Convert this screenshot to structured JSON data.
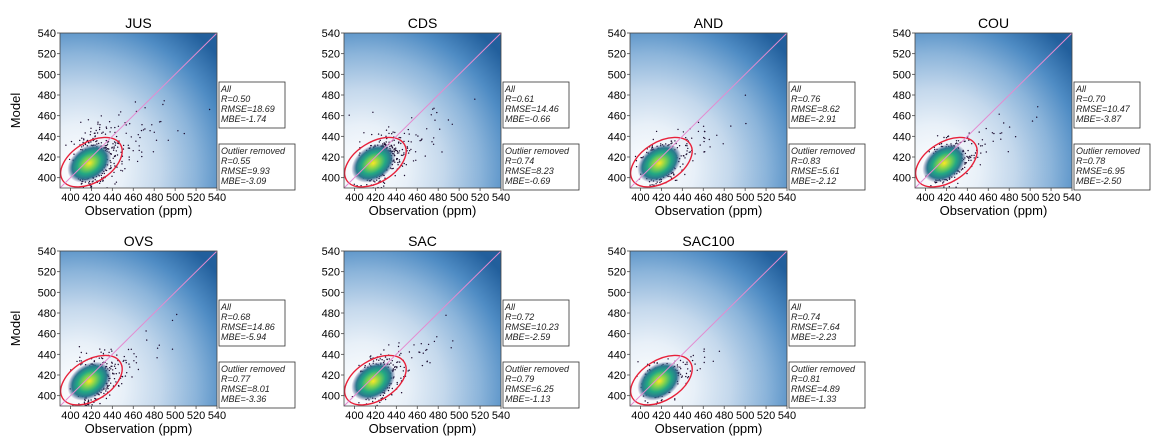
{
  "figure": {
    "x_axis_label": "Observation (ppm)",
    "y_axis_label": "Model"
  },
  "chart_data": [
    {
      "type": "scatter",
      "title": "JUS",
      "xlabel": "Observation (ppm)",
      "ylabel": "Model",
      "xlim": [
        390,
        540
      ],
      "ylim": [
        390,
        540
      ],
      "xticks": [
        "400",
        "420",
        "440",
        "460",
        "480",
        "500",
        "520",
        "540"
      ],
      "yticks": [
        "400",
        "420",
        "440",
        "460",
        "480",
        "500",
        "520",
        "540"
      ],
      "stats": {
        "all": {
          "label": "All",
          "lines": [
            "R=0.50",
            "RMSE=18.69",
            "MBE=-1.74"
          ]
        },
        "outlier_removed": {
          "label": "Outlier removed",
          "lines": [
            "R=0.55",
            "RMSE=9.93",
            "MBE=-3.09"
          ]
        }
      }
    },
    {
      "type": "scatter",
      "title": "CDS",
      "xlabel": "Observation (ppm)",
      "ylabel": "",
      "xlim": [
        390,
        540
      ],
      "ylim": [
        390,
        540
      ],
      "xticks": [
        "400",
        "420",
        "440",
        "460",
        "480",
        "500",
        "520",
        "540"
      ],
      "yticks": [
        "400",
        "420",
        "440",
        "460",
        "480",
        "500",
        "520",
        "540"
      ],
      "stats": {
        "all": {
          "label": "All",
          "lines": [
            "R=0.61",
            "RMSE=14.46",
            "MBE=-0.66"
          ]
        },
        "outlier_removed": {
          "label": "Outlier removed",
          "lines": [
            "R=0.74",
            "RMSE=8.23",
            "MBE=-0.69"
          ]
        }
      }
    },
    {
      "type": "scatter",
      "title": "AND",
      "xlabel": "Observation (ppm)",
      "ylabel": "",
      "xlim": [
        390,
        540
      ],
      "ylim": [
        390,
        540
      ],
      "xticks": [
        "400",
        "420",
        "440",
        "460",
        "480",
        "500",
        "520",
        "540"
      ],
      "yticks": [
        "400",
        "420",
        "440",
        "460",
        "480",
        "500",
        "520",
        "540"
      ],
      "stats": {
        "all": {
          "label": "All",
          "lines": [
            "R=0.76",
            "RMSE=8.62",
            "MBE=-2.91"
          ]
        },
        "outlier_removed": {
          "label": "Outlier removed",
          "lines": [
            "R=0.83",
            "RMSE=5.61",
            "MBE=-2.12"
          ]
        }
      }
    },
    {
      "type": "scatter",
      "title": "COU",
      "xlabel": "Observation (ppm)",
      "ylabel": "",
      "xlim": [
        390,
        540
      ],
      "ylim": [
        390,
        540
      ],
      "xticks": [
        "400",
        "420",
        "440",
        "460",
        "480",
        "500",
        "520",
        "540"
      ],
      "yticks": [
        "400",
        "420",
        "440",
        "460",
        "480",
        "500",
        "520",
        "540"
      ],
      "stats": {
        "all": {
          "label": "All",
          "lines": [
            "R=0.70",
            "RMSE=10.47",
            "MBE=-3.87"
          ]
        },
        "outlier_removed": {
          "label": "Outlier removed",
          "lines": [
            "R=0.78",
            "RMSE=6.95",
            "MBE=-2.50"
          ]
        }
      }
    },
    {
      "type": "scatter",
      "title": "OVS",
      "xlabel": "Observation (ppm)",
      "ylabel": "Model",
      "xlim": [
        390,
        540
      ],
      "ylim": [
        390,
        540
      ],
      "xticks": [
        "400",
        "420",
        "440",
        "460",
        "480",
        "500",
        "520",
        "540"
      ],
      "yticks": [
        "400",
        "420",
        "440",
        "460",
        "480",
        "500",
        "520",
        "540"
      ],
      "stats": {
        "all": {
          "label": "All",
          "lines": [
            "R=0.68",
            "RMSE=14.86",
            "MBE=-5.94"
          ]
        },
        "outlier_removed": {
          "label": "Outlier removed",
          "lines": [
            "R=0.77",
            "RMSE=8.01",
            "MBE=-3.36"
          ]
        }
      }
    },
    {
      "type": "scatter",
      "title": "SAC",
      "xlabel": "Observation (ppm)",
      "ylabel": "",
      "xlim": [
        390,
        540
      ],
      "ylim": [
        390,
        540
      ],
      "xticks": [
        "400",
        "420",
        "440",
        "460",
        "480",
        "500",
        "520",
        "540"
      ],
      "yticks": [
        "400",
        "420",
        "440",
        "460",
        "480",
        "500",
        "520",
        "540"
      ],
      "stats": {
        "all": {
          "label": "All",
          "lines": [
            "R=0.72",
            "RMSE=10.23",
            "MBE=-2.59"
          ]
        },
        "outlier_removed": {
          "label": "Outlier removed",
          "lines": [
            "R=0.79",
            "RMSE=6.25",
            "MBE=-1.13"
          ]
        }
      }
    },
    {
      "type": "scatter",
      "title": "SAC100",
      "xlabel": "Observation (ppm)",
      "ylabel": "",
      "xlim": [
        390,
        540
      ],
      "ylim": [
        390,
        540
      ],
      "xticks": [
        "400",
        "420",
        "440",
        "460",
        "480",
        "500",
        "520",
        "540"
      ],
      "yticks": [
        "400",
        "420",
        "440",
        "460",
        "480",
        "500",
        "520",
        "540"
      ],
      "stats": {
        "all": {
          "label": "All",
          "lines": [
            "R=0.74",
            "RMSE=7.64",
            "MBE=-2.23"
          ]
        },
        "outlier_removed": {
          "label": "Outlier removed",
          "lines": [
            "R=0.81",
            "RMSE=4.89",
            "MBE=-1.33"
          ]
        }
      }
    }
  ],
  "colors": {
    "density_high": "#fde725",
    "density_mid": "#21918c",
    "density_low": "#3b0f70",
    "background_dark": "#2b6cb0",
    "background_light": "#f3f7fc",
    "outlier_contour": "#e8213a",
    "identity_line": "#e48bd0",
    "points": "#1a0a2e"
  }
}
